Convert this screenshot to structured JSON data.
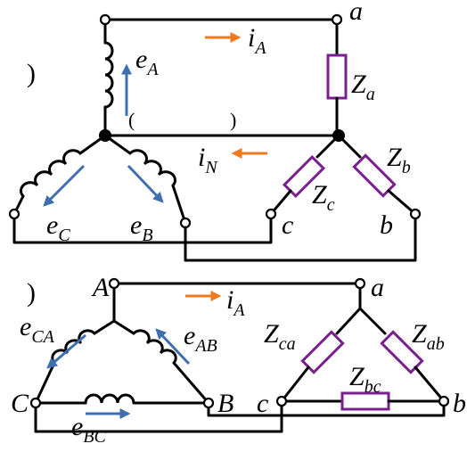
{
  "top": {
    "paren": ")",
    "open_mark": "(",
    "close_mark": ")",
    "nodes": {
      "a": "a",
      "b": "b",
      "c": "c"
    },
    "labels": {
      "iA": {
        "main": "i",
        "sub": "A"
      },
      "iN": {
        "main": "i",
        "sub": "N"
      },
      "eA": {
        "main": "e",
        "sub": "A"
      },
      "eB": {
        "main": "e",
        "sub": "B"
      },
      "eC": {
        "main": "e",
        "sub": "C"
      },
      "Za": {
        "main": "Z",
        "sub": "a"
      },
      "Zb": {
        "main": "Z",
        "sub": "b"
      },
      "Zc": {
        "main": "Z",
        "sub": "c"
      }
    }
  },
  "bottom": {
    "paren": ")",
    "nodes": {
      "A": "A",
      "B": "B",
      "C": "C",
      "a": "a",
      "b": "b",
      "c": "c"
    },
    "labels": {
      "iA": {
        "main": "i",
        "sub": "A"
      },
      "eAB": {
        "main": "e",
        "sub": "AB"
      },
      "eBC": {
        "main": "e",
        "sub": "BC"
      },
      "eCA": {
        "main": "e",
        "sub": "CA"
      },
      "Zab": {
        "main": "Z",
        "sub": "ab"
      },
      "Zbc": {
        "main": "Z",
        "sub": "bc"
      },
      "Zca": {
        "main": "Z",
        "sub": "ca"
      }
    }
  },
  "colors": {
    "wire": "#000000",
    "impedance": "#7a1f8f",
    "emf_arrow": "#3f6fb0",
    "current_arrow": "#f07a20"
  }
}
